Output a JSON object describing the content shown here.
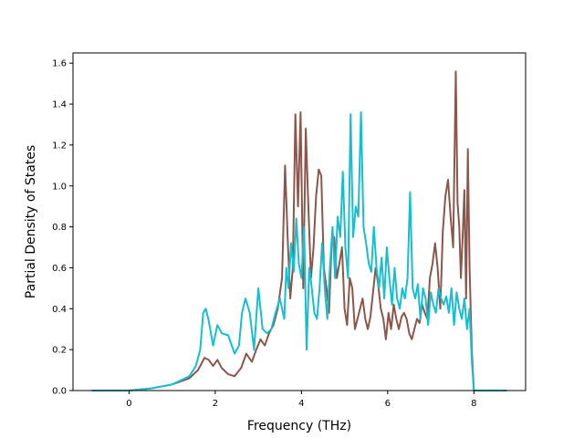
{
  "chart_data": {
    "type": "line",
    "title": "",
    "xlabel": "Frequency (THz)",
    "ylabel": "Partial Density of States",
    "xlim": [
      -1.3,
      9.2
    ],
    "ylim": [
      0.0,
      1.65
    ],
    "xticks": [
      {
        "value": 0,
        "label": "0"
      },
      {
        "value": 2,
        "label": "2"
      },
      {
        "value": 4,
        "label": "4"
      },
      {
        "value": 6,
        "label": "6"
      },
      {
        "value": 8,
        "label": "8"
      }
    ],
    "yticks": [
      {
        "value": 0.0,
        "label": "0.0"
      },
      {
        "value": 0.2,
        "label": "0.2"
      },
      {
        "value": 0.4,
        "label": "0.4"
      },
      {
        "value": 0.6,
        "label": "0.6"
      },
      {
        "value": 0.8,
        "label": "0.8"
      },
      {
        "value": 1.0,
        "label": "1.0"
      },
      {
        "value": 1.2,
        "label": "1.2"
      },
      {
        "value": 1.4,
        "label": "1.4"
      },
      {
        "value": 1.6,
        "label": "1.6"
      }
    ],
    "grid": false,
    "legend": "none",
    "series": [
      {
        "color": "#8c564b",
        "x": [
          -0.85,
          0.0,
          0.5,
          1.0,
          1.4,
          1.6,
          1.75,
          1.85,
          1.95,
          2.05,
          2.15,
          2.3,
          2.45,
          2.6,
          2.72,
          2.85,
          2.95,
          3.05,
          3.15,
          3.25,
          3.35,
          3.45,
          3.55,
          3.62,
          3.68,
          3.74,
          3.8,
          3.86,
          3.92,
          3.98,
          4.04,
          4.1,
          4.16,
          4.22,
          4.28,
          4.34,
          4.4,
          4.46,
          4.52,
          4.58,
          4.64,
          4.7,
          4.76,
          4.82,
          4.88,
          4.94,
          5.0,
          5.06,
          5.12,
          5.18,
          5.24,
          5.3,
          5.36,
          5.42,
          5.48,
          5.54,
          5.6,
          5.66,
          5.72,
          5.78,
          5.84,
          5.9,
          5.96,
          6.02,
          6.08,
          6.14,
          6.2,
          6.26,
          6.32,
          6.38,
          6.44,
          6.5,
          6.56,
          6.62,
          6.68,
          6.74,
          6.8,
          6.86,
          6.92,
          6.98,
          7.04,
          7.1,
          7.16,
          7.22,
          7.28,
          7.34,
          7.4,
          7.46,
          7.52,
          7.58,
          7.62,
          7.66,
          7.7,
          7.74,
          7.78,
          7.82,
          7.86,
          7.9,
          7.95,
          8.0,
          8.3,
          8.75
        ],
        "values": [
          0.0,
          0.0,
          0.01,
          0.03,
          0.06,
          0.1,
          0.16,
          0.15,
          0.12,
          0.15,
          0.11,
          0.08,
          0.07,
          0.11,
          0.18,
          0.14,
          0.2,
          0.25,
          0.22,
          0.28,
          0.32,
          0.4,
          0.55,
          1.1,
          0.75,
          0.45,
          0.6,
          1.35,
          0.9,
          1.36,
          0.5,
          1.28,
          0.9,
          0.55,
          0.7,
          0.95,
          1.08,
          1.05,
          0.6,
          0.5,
          0.38,
          0.72,
          0.75,
          0.55,
          0.62,
          0.7,
          0.4,
          0.32,
          0.55,
          0.5,
          0.3,
          0.35,
          0.4,
          0.45,
          0.35,
          0.3,
          0.36,
          0.48,
          0.6,
          0.52,
          0.4,
          0.35,
          0.25,
          0.38,
          0.3,
          0.42,
          0.35,
          0.3,
          0.36,
          0.38,
          0.35,
          0.28,
          0.25,
          0.3,
          0.35,
          0.33,
          0.42,
          0.38,
          0.35,
          0.55,
          0.62,
          0.72,
          0.6,
          0.4,
          0.78,
          0.95,
          1.03,
          0.85,
          0.7,
          1.56,
          0.92,
          0.8,
          0.55,
          0.75,
          0.98,
          0.45,
          1.18,
          0.6,
          0.2,
          0.0,
          0.0,
          0.0
        ]
      },
      {
        "color": "#17becf",
        "x": [
          -0.85,
          0.0,
          0.5,
          1.0,
          1.4,
          1.55,
          1.65,
          1.72,
          1.78,
          1.85,
          1.95,
          2.05,
          2.15,
          2.3,
          2.45,
          2.55,
          2.62,
          2.7,
          2.8,
          2.9,
          3.0,
          3.1,
          3.2,
          3.3,
          3.4,
          3.5,
          3.6,
          3.65,
          3.7,
          3.76,
          3.82,
          3.88,
          3.94,
          4.0,
          4.06,
          4.12,
          4.18,
          4.24,
          4.3,
          4.36,
          4.42,
          4.48,
          4.54,
          4.6,
          4.66,
          4.72,
          4.78,
          4.84,
          4.9,
          4.96,
          5.02,
          5.08,
          5.14,
          5.2,
          5.26,
          5.32,
          5.38,
          5.44,
          5.5,
          5.56,
          5.62,
          5.68,
          5.74,
          5.8,
          5.86,
          5.92,
          5.98,
          6.04,
          6.1,
          6.16,
          6.22,
          6.28,
          6.34,
          6.4,
          6.46,
          6.52,
          6.58,
          6.64,
          6.7,
          6.76,
          6.82,
          6.88,
          6.94,
          7.0,
          7.06,
          7.12,
          7.18,
          7.24,
          7.3,
          7.36,
          7.42,
          7.48,
          7.54,
          7.6,
          7.66,
          7.72,
          7.78,
          7.84,
          7.9,
          7.95,
          8.0,
          8.3,
          8.75
        ],
        "values": [
          0.0,
          0.0,
          0.01,
          0.03,
          0.07,
          0.12,
          0.2,
          0.38,
          0.4,
          0.34,
          0.22,
          0.32,
          0.28,
          0.27,
          0.18,
          0.22,
          0.38,
          0.45,
          0.38,
          0.2,
          0.5,
          0.3,
          0.28,
          0.3,
          0.38,
          0.45,
          0.35,
          0.6,
          0.5,
          0.72,
          0.58,
          0.84,
          0.62,
          0.55,
          0.8,
          0.2,
          0.6,
          0.5,
          0.38,
          0.35,
          0.5,
          0.72,
          0.5,
          0.35,
          0.6,
          0.8,
          0.55,
          0.85,
          0.75,
          1.07,
          0.7,
          0.55,
          1.35,
          0.75,
          0.9,
          0.85,
          1.36,
          0.8,
          0.72,
          0.62,
          0.58,
          0.8,
          0.6,
          0.5,
          0.65,
          0.45,
          0.7,
          0.55,
          0.42,
          0.6,
          0.45,
          0.4,
          0.5,
          0.45,
          0.55,
          0.97,
          0.5,
          0.45,
          0.52,
          0.35,
          0.5,
          0.45,
          0.32,
          0.48,
          0.42,
          0.38,
          0.5,
          0.45,
          0.42,
          0.46,
          0.38,
          0.5,
          0.32,
          0.48,
          0.4,
          0.35,
          0.45,
          0.3,
          0.4,
          0.15,
          0.0,
          0.0,
          0.0
        ]
      }
    ]
  }
}
